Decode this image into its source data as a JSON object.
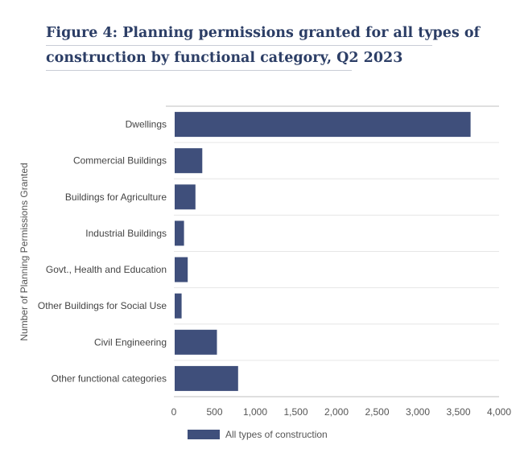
{
  "figure": {
    "title_line1": "Figure 4: Planning permissions granted for all types of",
    "title_line2": "construction by functional category, Q2 2023"
  },
  "colors": {
    "bar": "#3f4f7b",
    "grid": "#e6e6e6",
    "axis": "#bfbfbf"
  },
  "chart_data": {
    "type": "bar",
    "orientation": "horizontal",
    "categories": [
      "Dwellings",
      "Commercial Buildings",
      "Buildings for Agriculture",
      "Industrial Buildings",
      "Govt., Health and Education",
      "Other Buildings for Social Use",
      "Civil Engineering",
      "Other functional categories"
    ],
    "series": [
      {
        "name": "All types of construction",
        "values": [
          3650,
          350,
          265,
          125,
          170,
          95,
          530,
          790
        ]
      }
    ],
    "xlim": [
      0,
      4000
    ],
    "xticks": [
      "0",
      "500",
      "1,000",
      "1,500",
      "2,000",
      "2,500",
      "3,000",
      "3,500",
      "4,000"
    ],
    "ylabel": "Number of Planning Permissions Granted",
    "legend_position": "bottom-left",
    "grid": true
  }
}
